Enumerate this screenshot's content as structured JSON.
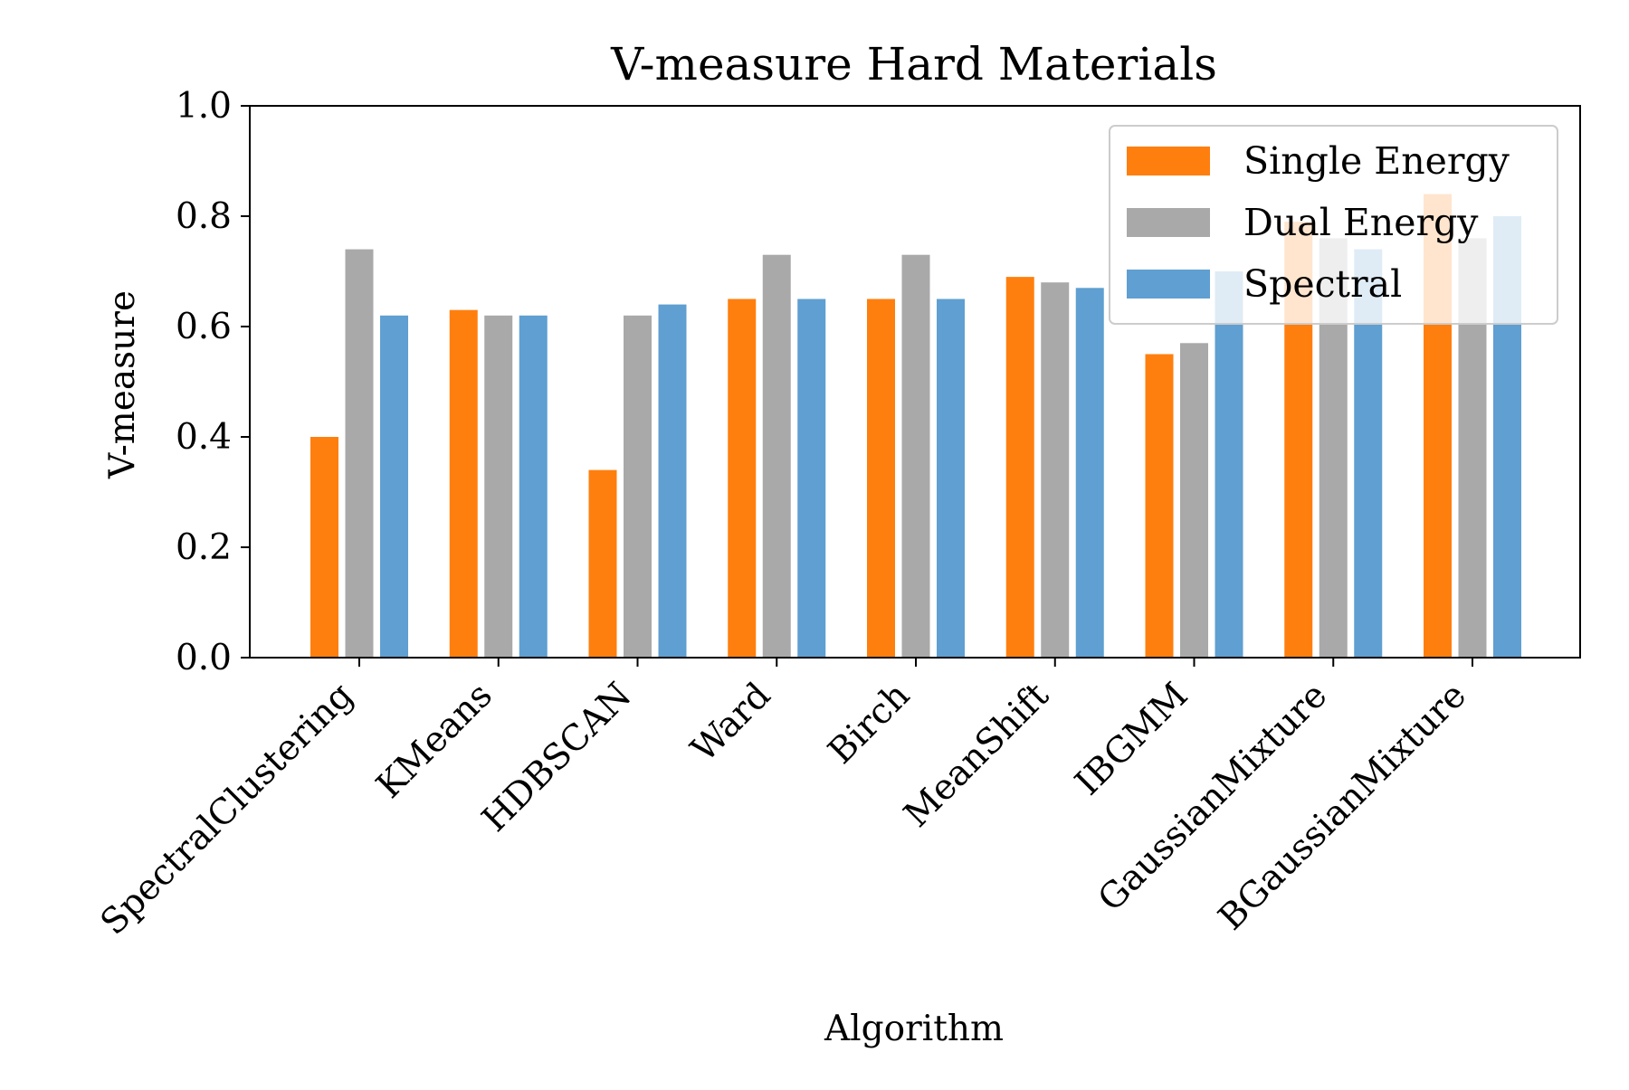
{
  "chart_data": {
    "type": "bar",
    "title": "V-measure Hard Materials",
    "xlabel": "Algorithm",
    "ylabel": "V-measure",
    "ylim": [
      0,
      1.0
    ],
    "yticks": [
      "0.0",
      "0.2",
      "0.4",
      "0.6",
      "0.8",
      "1.0"
    ],
    "grid": false,
    "legend_position": "top-right",
    "categories": [
      "SpectralClustering",
      "KMeans",
      "HDBSCAN",
      "Ward",
      "Birch",
      "MeanShift",
      "IBGMM",
      "GaussianMixture",
      "BGaussianMixture"
    ],
    "series": [
      {
        "name": "Single Energy",
        "color": "#ff7f0e",
        "values": [
          0.4,
          0.63,
          0.34,
          0.65,
          0.65,
          0.69,
          0.55,
          0.79,
          0.84
        ]
      },
      {
        "name": "Dual Energy",
        "color": "#a9a9a9",
        "values": [
          0.74,
          0.62,
          0.62,
          0.73,
          0.73,
          0.68,
          0.57,
          0.76,
          0.76
        ]
      },
      {
        "name": "Spectral",
        "color": "#5f9fd1",
        "values": [
          0.62,
          0.62,
          0.64,
          0.65,
          0.65,
          0.67,
          0.7,
          0.74,
          0.8
        ]
      }
    ]
  }
}
